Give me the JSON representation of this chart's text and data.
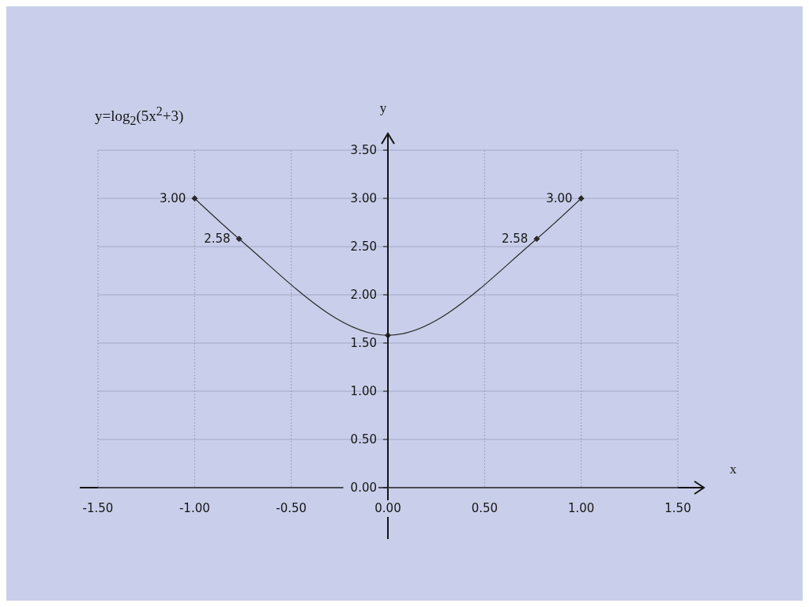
{
  "chart_data": {
    "type": "line",
    "title": "y=log$_{2}$(5x$^{2}$+3)",
    "xlabel": "x",
    "ylabel": "y",
    "x": [
      -1,
      -0.77,
      0,
      0.77,
      1
    ],
    "series": [
      {
        "color": "#2a2a2a",
        "values": [
          3.0,
          2.58,
          1.58,
          2.58,
          3.0
        ],
        "value_labels": [
          "3.00",
          "2.58",
          null,
          "2.58",
          "3.00"
        ]
      }
    ],
    "xlim": [
      -1.5,
      1.5
    ],
    "xticks": [
      {
        "value": -1.5,
        "label": "-1.50"
      },
      {
        "value": -1,
        "label": "-1.00"
      },
      {
        "value": -0.5,
        "label": "-0.50"
      },
      {
        "value": 0,
        "label": "0.00"
      },
      {
        "value": 0.5,
        "label": "0.50"
      },
      {
        "value": 1,
        "label": "1.00"
      },
      {
        "value": 1.5,
        "label": "1.50"
      }
    ],
    "ylim": [
      0,
      3.5
    ],
    "yticks": [
      {
        "value": 0,
        "label": "0.00"
      },
      {
        "value": 0.5,
        "label": "0.50"
      },
      {
        "value": 1,
        "label": "1.00"
      },
      {
        "value": 1.5,
        "label": "1.50"
      },
      {
        "value": 2,
        "label": "2.00"
      },
      {
        "value": 2.5,
        "label": "2.50"
      },
      {
        "value": 3,
        "label": "3.00"
      },
      {
        "value": 3.5,
        "label": "3.50"
      }
    ],
    "grid": true,
    "marker": "diamond"
  }
}
